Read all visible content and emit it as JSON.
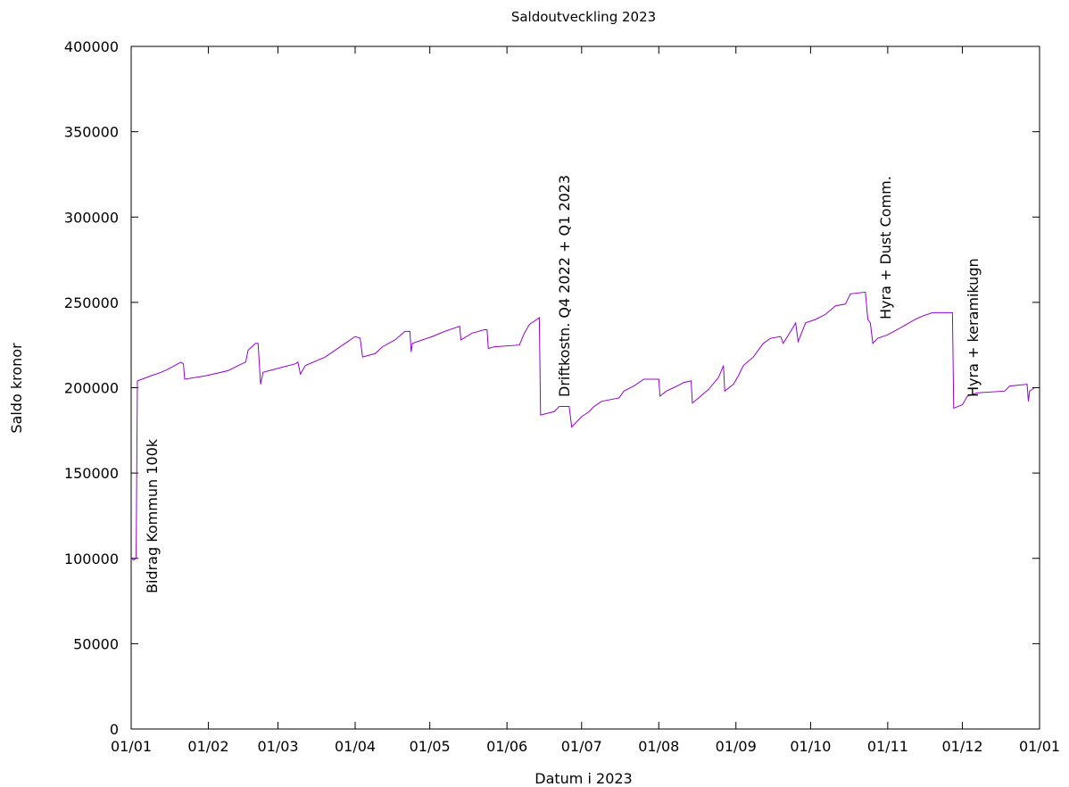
{
  "chart_data": {
    "type": "line",
    "title": "Saldoutveckling 2023",
    "xlabel": "Datum i 2023",
    "ylabel": "Saldo kronor",
    "color": "#9400d3",
    "step": false,
    "grid": false,
    "xlim": [
      0,
      365
    ],
    "ylim": [
      0,
      400000
    ],
    "xticks": [
      {
        "value": 0,
        "label": "01/01"
      },
      {
        "value": 31,
        "label": "01/02"
      },
      {
        "value": 59,
        "label": "01/03"
      },
      {
        "value": 90,
        "label": "01/04"
      },
      {
        "value": 120,
        "label": "01/05"
      },
      {
        "value": 151,
        "label": "01/06"
      },
      {
        "value": 181,
        "label": "01/07"
      },
      {
        "value": 212,
        "label": "01/08"
      },
      {
        "value": 243,
        "label": "01/09"
      },
      {
        "value": 273,
        "label": "01/10"
      },
      {
        "value": 304,
        "label": "01/11"
      },
      {
        "value": 334,
        "label": "01/12"
      },
      {
        "value": 365,
        "label": "01/01"
      }
    ],
    "yticks": [
      0,
      50000,
      100000,
      150000,
      200000,
      250000,
      300000,
      350000,
      400000
    ],
    "annotations": [
      "Bidrag Kommun 100k",
      "Driftkostn. Q4 2022 + Q1 2023",
      "Hyra + Dust Comm.",
      "Hyra + keramikugn"
    ],
    "x": [
      0,
      1,
      2,
      2.5,
      8,
      12,
      15,
      20,
      21,
      21.5,
      30,
      39,
      43,
      46,
      47,
      50,
      51,
      52,
      53,
      58,
      66,
      67,
      68,
      70,
      78,
      82,
      86,
      90,
      92,
      93,
      98,
      101,
      106,
      110,
      112,
      112.5,
      113,
      121,
      126,
      132,
      132.5,
      137,
      142,
      143,
      143.5,
      146,
      156,
      158,
      160,
      164,
      164.5,
      170,
      172,
      176,
      177,
      179,
      181,
      184,
      186,
      189,
      196,
      198,
      202,
      206,
      212,
      212.5,
      215,
      218,
      222,
      225,
      225.5,
      228,
      232,
      236,
      238,
      238.5,
      242,
      244,
      246,
      250,
      254,
      257,
      261,
      262,
      265,
      267,
      268,
      271,
      275,
      279,
      283,
      287,
      289,
      295,
      296,
      297,
      298,
      300,
      304,
      309,
      315,
      318,
      322,
      330,
      330.5,
      334,
      336,
      340,
      351,
      353,
      360,
      360.5,
      361,
      363
    ],
    "values": [
      100000,
      99000,
      100000,
      204000,
      207000,
      209000,
      211000,
      215000,
      214000,
      205000,
      207000,
      210000,
      213000,
      215000,
      222000,
      226000,
      226000,
      202000,
      209000,
      211000,
      214000,
      215000,
      208000,
      213000,
      218000,
      222000,
      226000,
      230000,
      229000,
      218000,
      220000,
      224000,
      228000,
      233000,
      233000,
      221000,
      226000,
      230000,
      233000,
      236000,
      228000,
      232000,
      234000,
      234000,
      223000,
      224000,
      225000,
      232000,
      237000,
      241000,
      184000,
      186000,
      189000,
      189000,
      177000,
      180000,
      183000,
      186000,
      189000,
      192000,
      194000,
      198000,
      201000,
      205000,
      205000,
      195000,
      198000,
      200000,
      203000,
      204000,
      191000,
      194000,
      199000,
      206000,
      213000,
      198000,
      202000,
      207000,
      213000,
      218000,
      226000,
      229000,
      230000,
      226000,
      233000,
      238000,
      227000,
      238000,
      240000,
      243000,
      248000,
      249000,
      255000,
      256000,
      240000,
      238000,
      226000,
      229000,
      231000,
      235000,
      240000,
      242000,
      244000,
      244000,
      188000,
      190000,
      195000,
      197000,
      198000,
      201000,
      202000,
      192000,
      198000,
      200000
    ]
  }
}
